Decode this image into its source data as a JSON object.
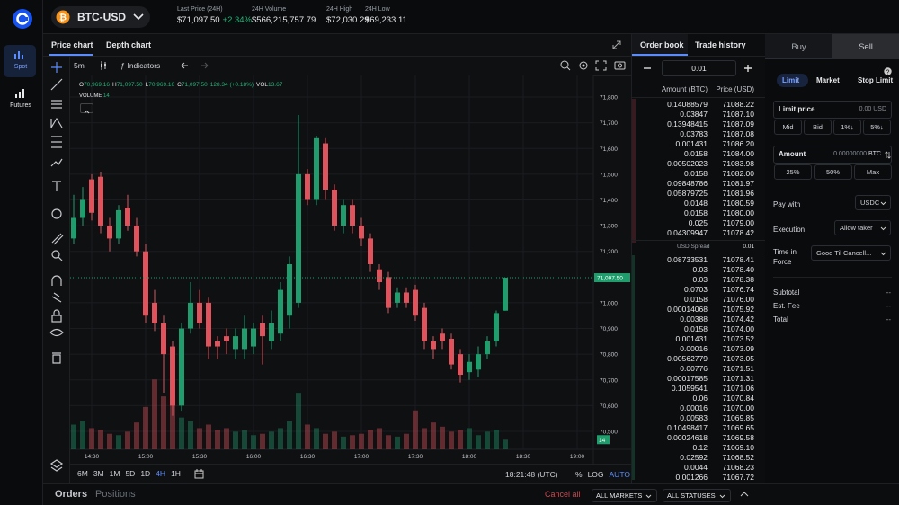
{
  "sidebar": {
    "items": [
      "Spot",
      "Futures"
    ]
  },
  "header": {
    "pair": "BTC-USD",
    "stats": [
      {
        "label": "Last Price (24H)",
        "value": "$71,097.50",
        "change": "+2.34%"
      },
      {
        "label": "24H Volume",
        "value": "$566,215,757.79"
      },
      {
        "label": "24H High",
        "value": "$72,030.29"
      },
      {
        "label": "24H Low",
        "value": "$69,233.11"
      }
    ]
  },
  "chart_panel": {
    "tabs": [
      "Price chart",
      "Depth chart"
    ],
    "interval": "5m",
    "indicators": "Indicators",
    "ranges": [
      "6M",
      "3M",
      "1M",
      "5D",
      "1D",
      "4H",
      "1H"
    ],
    "clock": "18:21:48 (UTC)",
    "scale_options": [
      "%",
      "LOG",
      "AUTO"
    ]
  },
  "price_chart": {
    "type": "candlestick",
    "x": [
      "14:20",
      "14:25",
      "14:30",
      "14:35",
      "14:40",
      "14:45",
      "14:50",
      "14:55",
      "15:00",
      "15:05",
      "15:10",
      "15:15",
      "15:20",
      "15:25",
      "15:30",
      "15:35",
      "15:40",
      "15:45",
      "15:50",
      "15:55",
      "16:00",
      "16:05",
      "16:10",
      "16:15",
      "16:20",
      "16:25",
      "16:30",
      "16:35",
      "16:40",
      "16:45",
      "16:50",
      "16:55",
      "17:00",
      "17:05",
      "17:10",
      "17:15",
      "17:20",
      "17:25",
      "17:30",
      "17:35",
      "17:40",
      "17:45",
      "17:50",
      "17:55",
      "18:00",
      "18:05",
      "18:10",
      "18:15",
      "18:20"
    ],
    "open": [
      71250,
      71330,
      71480,
      71490,
      71300,
      71250,
      71370,
      71300,
      71200,
      71000,
      70920,
      70830,
      70600,
      70900,
      71000,
      71000,
      70850,
      70870,
      70820,
      70820,
      70830,
      70920,
      70850,
      70880,
      70950,
      71000,
      71500,
      71400,
      71620,
      71440,
      71300,
      71380,
      71300,
      71250,
      71130,
      71100,
      71000,
      71040,
      71050,
      70980,
      70850,
      70880,
      70860,
      70800,
      70730,
      70740,
      70800,
      70850,
      70969.16
    ],
    "high": [
      71420,
      71450,
      71500,
      71510,
      71330,
      71380,
      71420,
      71330,
      71230,
      71050,
      70950,
      70850,
      70920,
      71080,
      71050,
      71020,
      70870,
      70900,
      70900,
      70950,
      70920,
      70950,
      70970,
      71080,
      71180,
      71730,
      71520,
      71650,
      71640,
      71460,
      71400,
      71400,
      71330,
      71270,
      71150,
      71120,
      71060,
      71060,
      71070,
      71000,
      70870,
      70900,
      70880,
      70820,
      70800,
      70830,
      70870,
      70970,
      71097.5
    ],
    "low": [
      71230,
      71300,
      71320,
      71270,
      71200,
      71230,
      71280,
      71180,
      70920,
      70890,
      70650,
      70560,
      70580,
      70880,
      70900,
      70780,
      70780,
      70800,
      70780,
      70780,
      70800,
      70760,
      70820,
      70850,
      70900,
      70980,
      71380,
      71380,
      71400,
      71280,
      71270,
      71270,
      71220,
      71120,
      71050,
      70960,
      70980,
      70980,
      70930,
      70820,
      70780,
      70820,
      70740,
      70690,
      70700,
      70710,
      70780,
      70830,
      70969.16
    ],
    "close": [
      71330,
      71400,
      71350,
      71300,
      71250,
      71360,
      71300,
      71200,
      70950,
      70920,
      70800,
      70600,
      70900,
      71000,
      70920,
      70830,
      70830,
      70850,
      70870,
      70900,
      70900,
      70870,
      70920,
      71050,
      71150,
      71500,
      71400,
      71640,
      71440,
      71300,
      71380,
      71300,
      71250,
      71150,
      71080,
      70980,
      71040,
      71000,
      70950,
      70850,
      70820,
      70850,
      70760,
      70720,
      70770,
      70800,
      70850,
      70960,
      71097.5
    ],
    "volume": [
      35,
      40,
      30,
      28,
      22,
      20,
      25,
      38,
      60,
      99,
      75,
      95,
      45,
      40,
      30,
      35,
      28,
      30,
      25,
      27,
      20,
      22,
      25,
      30,
      40,
      80,
      35,
      30,
      22,
      25,
      18,
      20,
      22,
      28,
      30,
      20,
      18,
      22,
      55,
      30,
      38,
      32,
      25,
      28,
      30,
      20,
      25,
      28,
      13.67
    ],
    "xlim": [
      "14:18",
      "19:09"
    ],
    "xticks": [
      "14:30",
      "15:00",
      "15:30",
      "16:00",
      "16:30",
      "17:00",
      "17:30",
      "18:00",
      "18:30",
      "19:00"
    ],
    "ylim": [
      70430,
      71870
    ],
    "yticks": [
      {
        "value": 71800,
        "label": "71,800"
      },
      {
        "value": 71700,
        "label": "71,700"
      },
      {
        "value": 71600,
        "label": "71,600"
      },
      {
        "value": 71500,
        "label": "71,500"
      },
      {
        "value": 71400,
        "label": "71,400"
      },
      {
        "value": 71300,
        "label": "71,300"
      },
      {
        "value": 71200,
        "label": "71,200"
      },
      {
        "value": 71000,
        "label": "71,000"
      },
      {
        "value": 70900,
        "label": "70,900"
      },
      {
        "value": 70800,
        "label": "70,800"
      },
      {
        "value": 70700,
        "label": "70,700"
      },
      {
        "value": 70600,
        "label": "70,600"
      },
      {
        "value": 70500,
        "label": "70,500"
      }
    ],
    "volume_lim": [
      0,
      140
    ],
    "up_color": "#1f9d6d",
    "down_color": "#e0525c",
    "grid": true,
    "last_price": {
      "value": 71097.5,
      "label": "71,097.50"
    },
    "volume_title": "VOLUME",
    "last_volume": {
      "value": 13.67,
      "label": "14"
    },
    "legend": {
      "items": [
        {
          "key": "O",
          "value": "70,969.16"
        },
        {
          "key": "H",
          "value": "71,097.50"
        },
        {
          "key": "L",
          "value": "70,969.16"
        },
        {
          "key": "C",
          "value": "71,097.50"
        }
      ],
      "change": "128.34 (+0.18%)",
      "vol_key": "VOL",
      "vol_value": "13.67"
    }
  },
  "order_book": {
    "tabs": [
      "Order book",
      "Trade history"
    ],
    "step": "0.01",
    "columns": [
      "Amount (BTC)",
      "Price (USD)"
    ],
    "asks": [
      [
        "0.14088579",
        "71088.22"
      ],
      [
        "0.03847",
        "71087.10"
      ],
      [
        "0.13948415",
        "71087.09"
      ],
      [
        "0.03783",
        "71087.08"
      ],
      [
        "0.001431",
        "71086.20"
      ],
      [
        "0.0158",
        "71084.00"
      ],
      [
        "0.00502023",
        "71083.98"
      ],
      [
        "0.0158",
        "71082.00"
      ],
      [
        "0.09848786",
        "71081.97"
      ],
      [
        "0.05879725",
        "71081.96"
      ],
      [
        "0.0148",
        "71080.59"
      ],
      [
        "0.0158",
        "71080.00"
      ],
      [
        "0.025",
        "71079.00"
      ],
      [
        "0.04309947",
        "71078.42"
      ]
    ],
    "spread_label": "USD Spread",
    "spread": "0.01",
    "bids": [
      [
        "0.08733531",
        "71078.41"
      ],
      [
        "0.03",
        "71078.40"
      ],
      [
        "0.03",
        "71078.38"
      ],
      [
        "0.0703",
        "71076.74"
      ],
      [
        "0.0158",
        "71076.00"
      ],
      [
        "0.00014068",
        "71075.92"
      ],
      [
        "0.00388",
        "71074.42"
      ],
      [
        "0.0158",
        "71074.00"
      ],
      [
        "0.001431",
        "71073.52"
      ],
      [
        "0.00016",
        "71073.09"
      ],
      [
        "0.00562779",
        "71073.05"
      ],
      [
        "0.00776",
        "71071.51"
      ],
      [
        "0.00017585",
        "71071.31"
      ],
      [
        "0.1059541",
        "71071.06"
      ],
      [
        "0.06",
        "71070.84"
      ],
      [
        "0.00016",
        "71070.00"
      ],
      [
        "0.00583",
        "71069.85"
      ],
      [
        "0.10498417",
        "71069.65"
      ],
      [
        "0.00024618",
        "71069.58"
      ],
      [
        "0.12",
        "71069.10"
      ],
      [
        "0.02592",
        "71068.52"
      ],
      [
        "0.0044",
        "71068.23"
      ],
      [
        "0.001266",
        "71067.72"
      ]
    ]
  },
  "order_form": {
    "sides": [
      "Buy",
      "Sell"
    ],
    "order_types": [
      "Limit",
      "Market",
      "Stop Limit"
    ],
    "limit_price": {
      "label": "Limit price",
      "placeholder": "0.00",
      "unit": "USD"
    },
    "price_presets": [
      "Mid",
      "Bid",
      "1%↓",
      "5%↓"
    ],
    "amount": {
      "label": "Amount",
      "placeholder": "0.00000000",
      "unit": "BTC"
    },
    "amount_presets": [
      "25%",
      "50%",
      "Max"
    ],
    "fields": [
      {
        "label": "Pay with",
        "value": "USDC"
      },
      {
        "label": "Execution",
        "value": "Allow taker"
      },
      {
        "label": "Time in Force",
        "value": "Good Til Cancell..."
      }
    ],
    "summary": [
      {
        "label": "Subtotal",
        "value": "--"
      },
      {
        "label": "Est. Fee",
        "value": "--"
      },
      {
        "label": "Total",
        "value": "--"
      }
    ]
  },
  "footer": {
    "tabs": [
      "Orders",
      "Positions"
    ],
    "cancel": "Cancel all",
    "filters": [
      "ALL MARKETS",
      "ALL STATUSES"
    ]
  }
}
